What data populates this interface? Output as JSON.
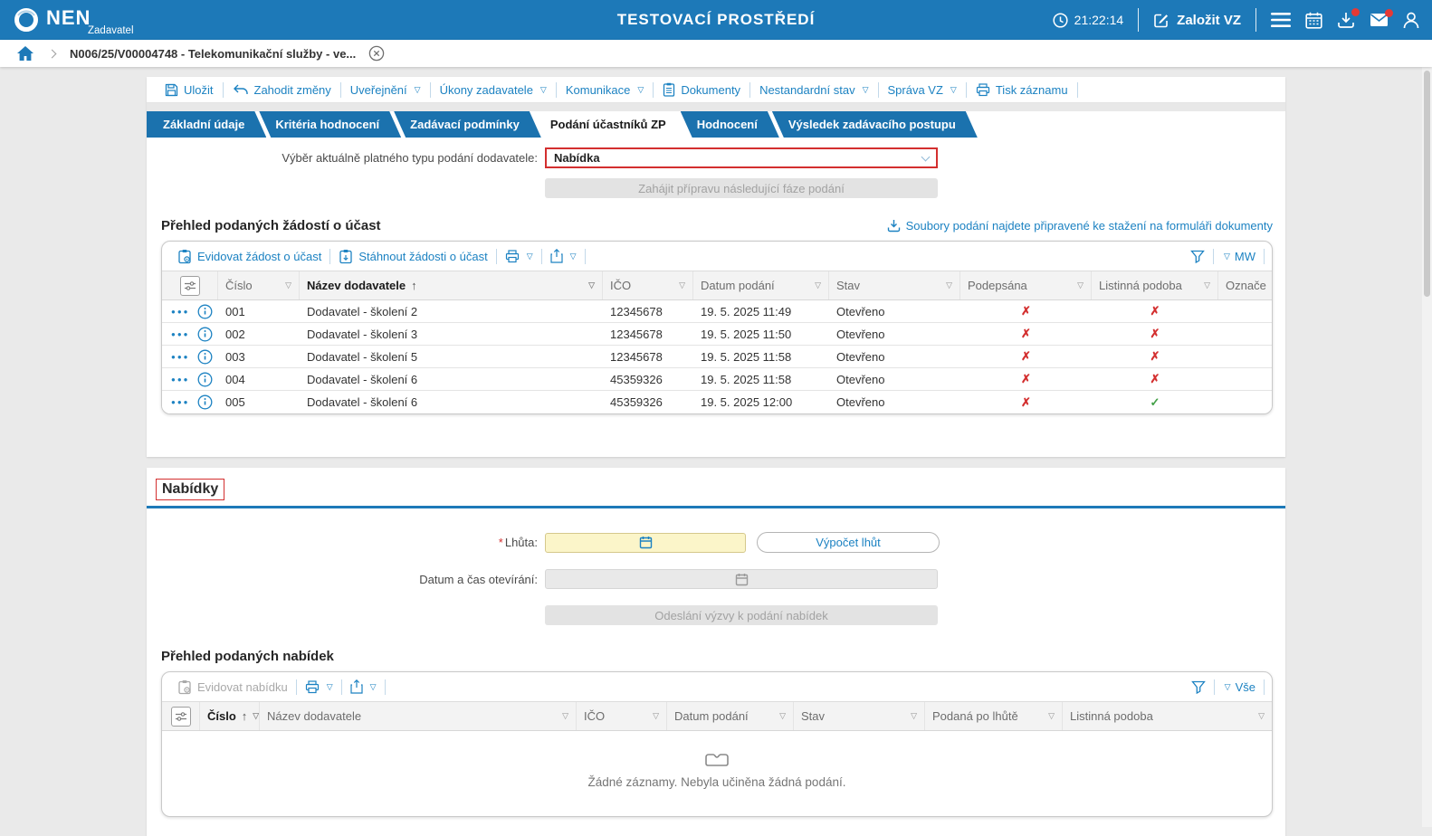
{
  "header": {
    "brand": "NEN",
    "brand_sub": "Zadavatel",
    "environment": "TESTOVACÍ PROSTŘEDÍ",
    "time": "21:22:14",
    "create_vz_label": "Založit VZ"
  },
  "breadcrumb": {
    "item": "N006/25/V00004748 - Telekomunikační služby - ve..."
  },
  "toolbar": {
    "items": [
      {
        "label": "Uložit",
        "icon": "save",
        "caret": false
      },
      {
        "label": "Zahodit změny",
        "icon": "discard",
        "caret": false
      },
      {
        "label": "Uveřejnění",
        "icon": "",
        "caret": true
      },
      {
        "label": "Úkony zadavatele",
        "icon": "",
        "caret": true
      },
      {
        "label": "Komunikace",
        "icon": "",
        "caret": true
      },
      {
        "label": "Dokumenty",
        "icon": "document",
        "caret": false
      },
      {
        "label": "Nestandardní stav",
        "icon": "",
        "caret": true
      },
      {
        "label": "Správa VZ",
        "icon": "",
        "caret": true
      },
      {
        "label": "Tisk záznamu",
        "icon": "printer",
        "caret": false
      }
    ]
  },
  "tabs": [
    {
      "label": "Základní údaje"
    },
    {
      "label": "Kritéria hodnocení"
    },
    {
      "label": "Zadávací podmínky"
    },
    {
      "label": "Podání účastníků ZP",
      "active": true
    },
    {
      "label": "Hodnocení"
    },
    {
      "label": "Výsledek zadávacího postupu"
    }
  ],
  "submission_type": {
    "label": "Výběr aktuálně platného typu podání dodavatele:",
    "value": "Nabídka"
  },
  "next_phase_button": "Zahájit přípravu následující fáze podání",
  "applications": {
    "title": "Přehled podaných žádostí o účast",
    "download_link": "Soubory podání najdete připravené ke stažení na formuláři dokumenty",
    "toolbar": {
      "register": "Evidovat žádost o účast",
      "download": "Stáhnout žádosti o účast",
      "view": "MW"
    },
    "columns": [
      "Číslo",
      "Název dodavatele",
      "IČO",
      "Datum podání",
      "Stav",
      "Podepsána",
      "Listinná podoba",
      "Označe"
    ],
    "sort_arrow": "↑",
    "rows": [
      {
        "cislo": "001",
        "nazev": "Dodavatel - školení 2",
        "ico": "12345678",
        "datum": "19. 5. 2025 11:49",
        "stav": "Otevřeno",
        "podepsana": false,
        "listinna": false
      },
      {
        "cislo": "002",
        "nazev": "Dodavatel - školení 3",
        "ico": "12345678",
        "datum": "19. 5. 2025 11:50",
        "stav": "Otevřeno",
        "podepsana": false,
        "listinna": false
      },
      {
        "cislo": "003",
        "nazev": "Dodavatel - školení 5",
        "ico": "12345678",
        "datum": "19. 5. 2025 11:58",
        "stav": "Otevřeno",
        "podepsana": false,
        "listinna": false
      },
      {
        "cislo": "004",
        "nazev": "Dodavatel - školení 6",
        "ico": "45359326",
        "datum": "19. 5. 2025 11:58",
        "stav": "Otevřeno",
        "podepsana": false,
        "listinna": false
      },
      {
        "cislo": "005",
        "nazev": "Dodavatel - školení 6",
        "ico": "45359326",
        "datum": "19. 5. 2025 12:00",
        "stav": "Otevřeno",
        "podepsana": false,
        "listinna": true
      }
    ]
  },
  "offers": {
    "section_title": "Nabídky",
    "deadline_label": "Lhůta:",
    "calc_button": "Výpočet lhůt",
    "opening_label": "Datum a čas otevírání:",
    "send_button": "Odeslání výzvy k podání nabídek",
    "title": "Přehled podaných nabídek",
    "toolbar": {
      "register": "Evidovat nabídku",
      "view": "Vše"
    },
    "columns": [
      "Číslo",
      "Název dodavatele",
      "IČO",
      "Datum podání",
      "Stav",
      "Podaná po lhůtě",
      "Listinná podoba"
    ],
    "sort_arrow": "↑",
    "empty": "Žádné záznamy. Nebyla učiněna žádná podání."
  },
  "colors": {
    "header_blue": "#1d79b8",
    "tab_blue": "#1b72ae",
    "link_blue": "#1c82c2",
    "error_red": "#d32f2f",
    "success_green": "#43a047",
    "required_yellow": "#fbf5c9"
  }
}
